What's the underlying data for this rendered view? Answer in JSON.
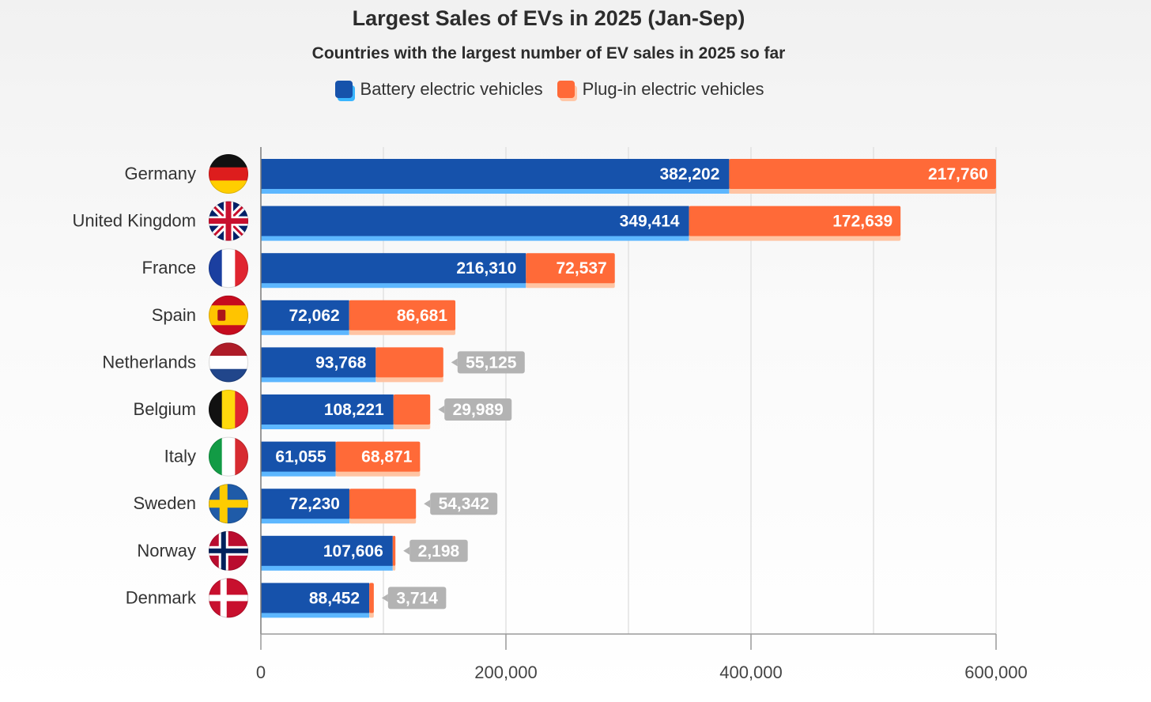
{
  "chart_data": {
    "type": "bar",
    "orientation": "horizontal",
    "stacked": true,
    "title": "Largest Sales of EVs in 2025 (Jan-Sep)",
    "subtitle": "Countries with the largest number of EV sales in 2025 so far",
    "legend_position": "top-center",
    "categories": [
      "Germany",
      "United Kingdom",
      "France",
      "Spain",
      "Netherlands",
      "Belgium",
      "Italy",
      "Sweden",
      "Norway",
      "Denmark"
    ],
    "series": [
      {
        "name": "Battery electric vehicles",
        "color": "#1652ab",
        "values": [
          382202,
          349414,
          216310,
          72062,
          93768,
          108221,
          61055,
          72230,
          107606,
          88452
        ],
        "labels": [
          "382,202",
          "349,414",
          "216,310",
          "72,062",
          "93,768",
          "108,221",
          "61,055",
          "72,230",
          "107,606",
          "88,452"
        ]
      },
      {
        "name": "Plug-in electric vehicles",
        "color": "#ff6a38",
        "values": [
          217760,
          172639,
          72537,
          86681,
          55125,
          29989,
          68871,
          54342,
          2198,
          3714
        ],
        "labels": [
          "217,760",
          "172,639",
          "72,537",
          "86,681",
          "55,125",
          "29,989",
          "68,871",
          "54,342",
          "2,198",
          "3,714"
        ]
      }
    ],
    "flags": [
      "germany",
      "united-kingdom",
      "france",
      "spain",
      "netherlands",
      "belgium",
      "italy",
      "sweden",
      "norway",
      "denmark"
    ],
    "xlim": [
      0,
      600000
    ],
    "xticks": [
      0,
      200000,
      400000,
      600000
    ],
    "xtick_labels": [
      "0",
      "200,000",
      "400,000",
      "600,000"
    ],
    "grid": true
  }
}
